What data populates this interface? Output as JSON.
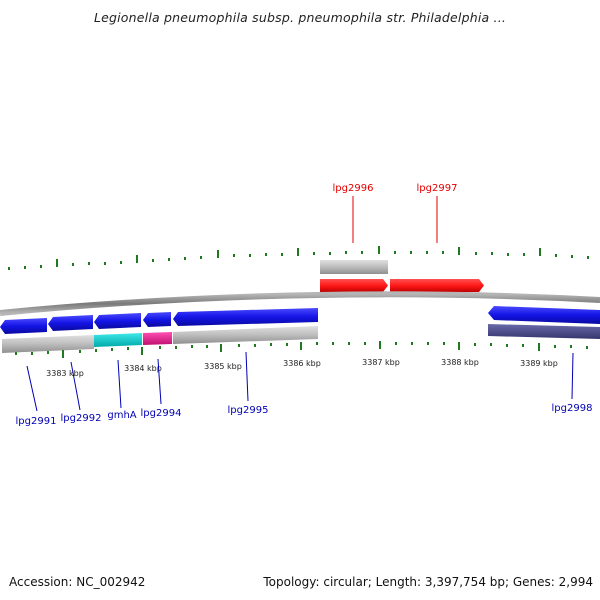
{
  "title": "Legionella pneumophila subsp. pneumophila str. Philadelphia ...",
  "footer": {
    "accession": "Accession: NC_002942",
    "summary": "Topology: circular; Length: 3,397,754 bp; Genes: 2,994"
  },
  "colors": {
    "forward_gene": "#1414e6",
    "reverse_gene": "#ff1a1a",
    "forward_label": "#0000b4",
    "reverse_label": "#e60000",
    "gmhA": "#00c8c8",
    "lpg2994": "#e6148c",
    "lpg2998_lower": "#4a4a8c",
    "backbone": "#8c8c8c",
    "ticks": "#1f7a1f",
    "cds_bar": "#bdbdbd"
  },
  "scale": {
    "unit": "kbp",
    "labels": [
      "3383 kbp",
      "3384 kbp",
      "3385 kbp",
      "3386 kbp",
      "3387 kbp",
      "3388 kbp",
      "3389 kbp"
    ]
  },
  "genes": [
    {
      "label": "lpg2991",
      "strand": "forward"
    },
    {
      "label": "lpg2992",
      "strand": "forward"
    },
    {
      "label": "gmhA",
      "strand": "forward"
    },
    {
      "label": "lpg2994",
      "strand": "forward"
    },
    {
      "label": "lpg2995",
      "strand": "forward"
    },
    {
      "label": "lpg2996",
      "strand": "reverse"
    },
    {
      "label": "lpg2997",
      "strand": "reverse"
    },
    {
      "label": "lpg2998",
      "strand": "forward"
    }
  ]
}
